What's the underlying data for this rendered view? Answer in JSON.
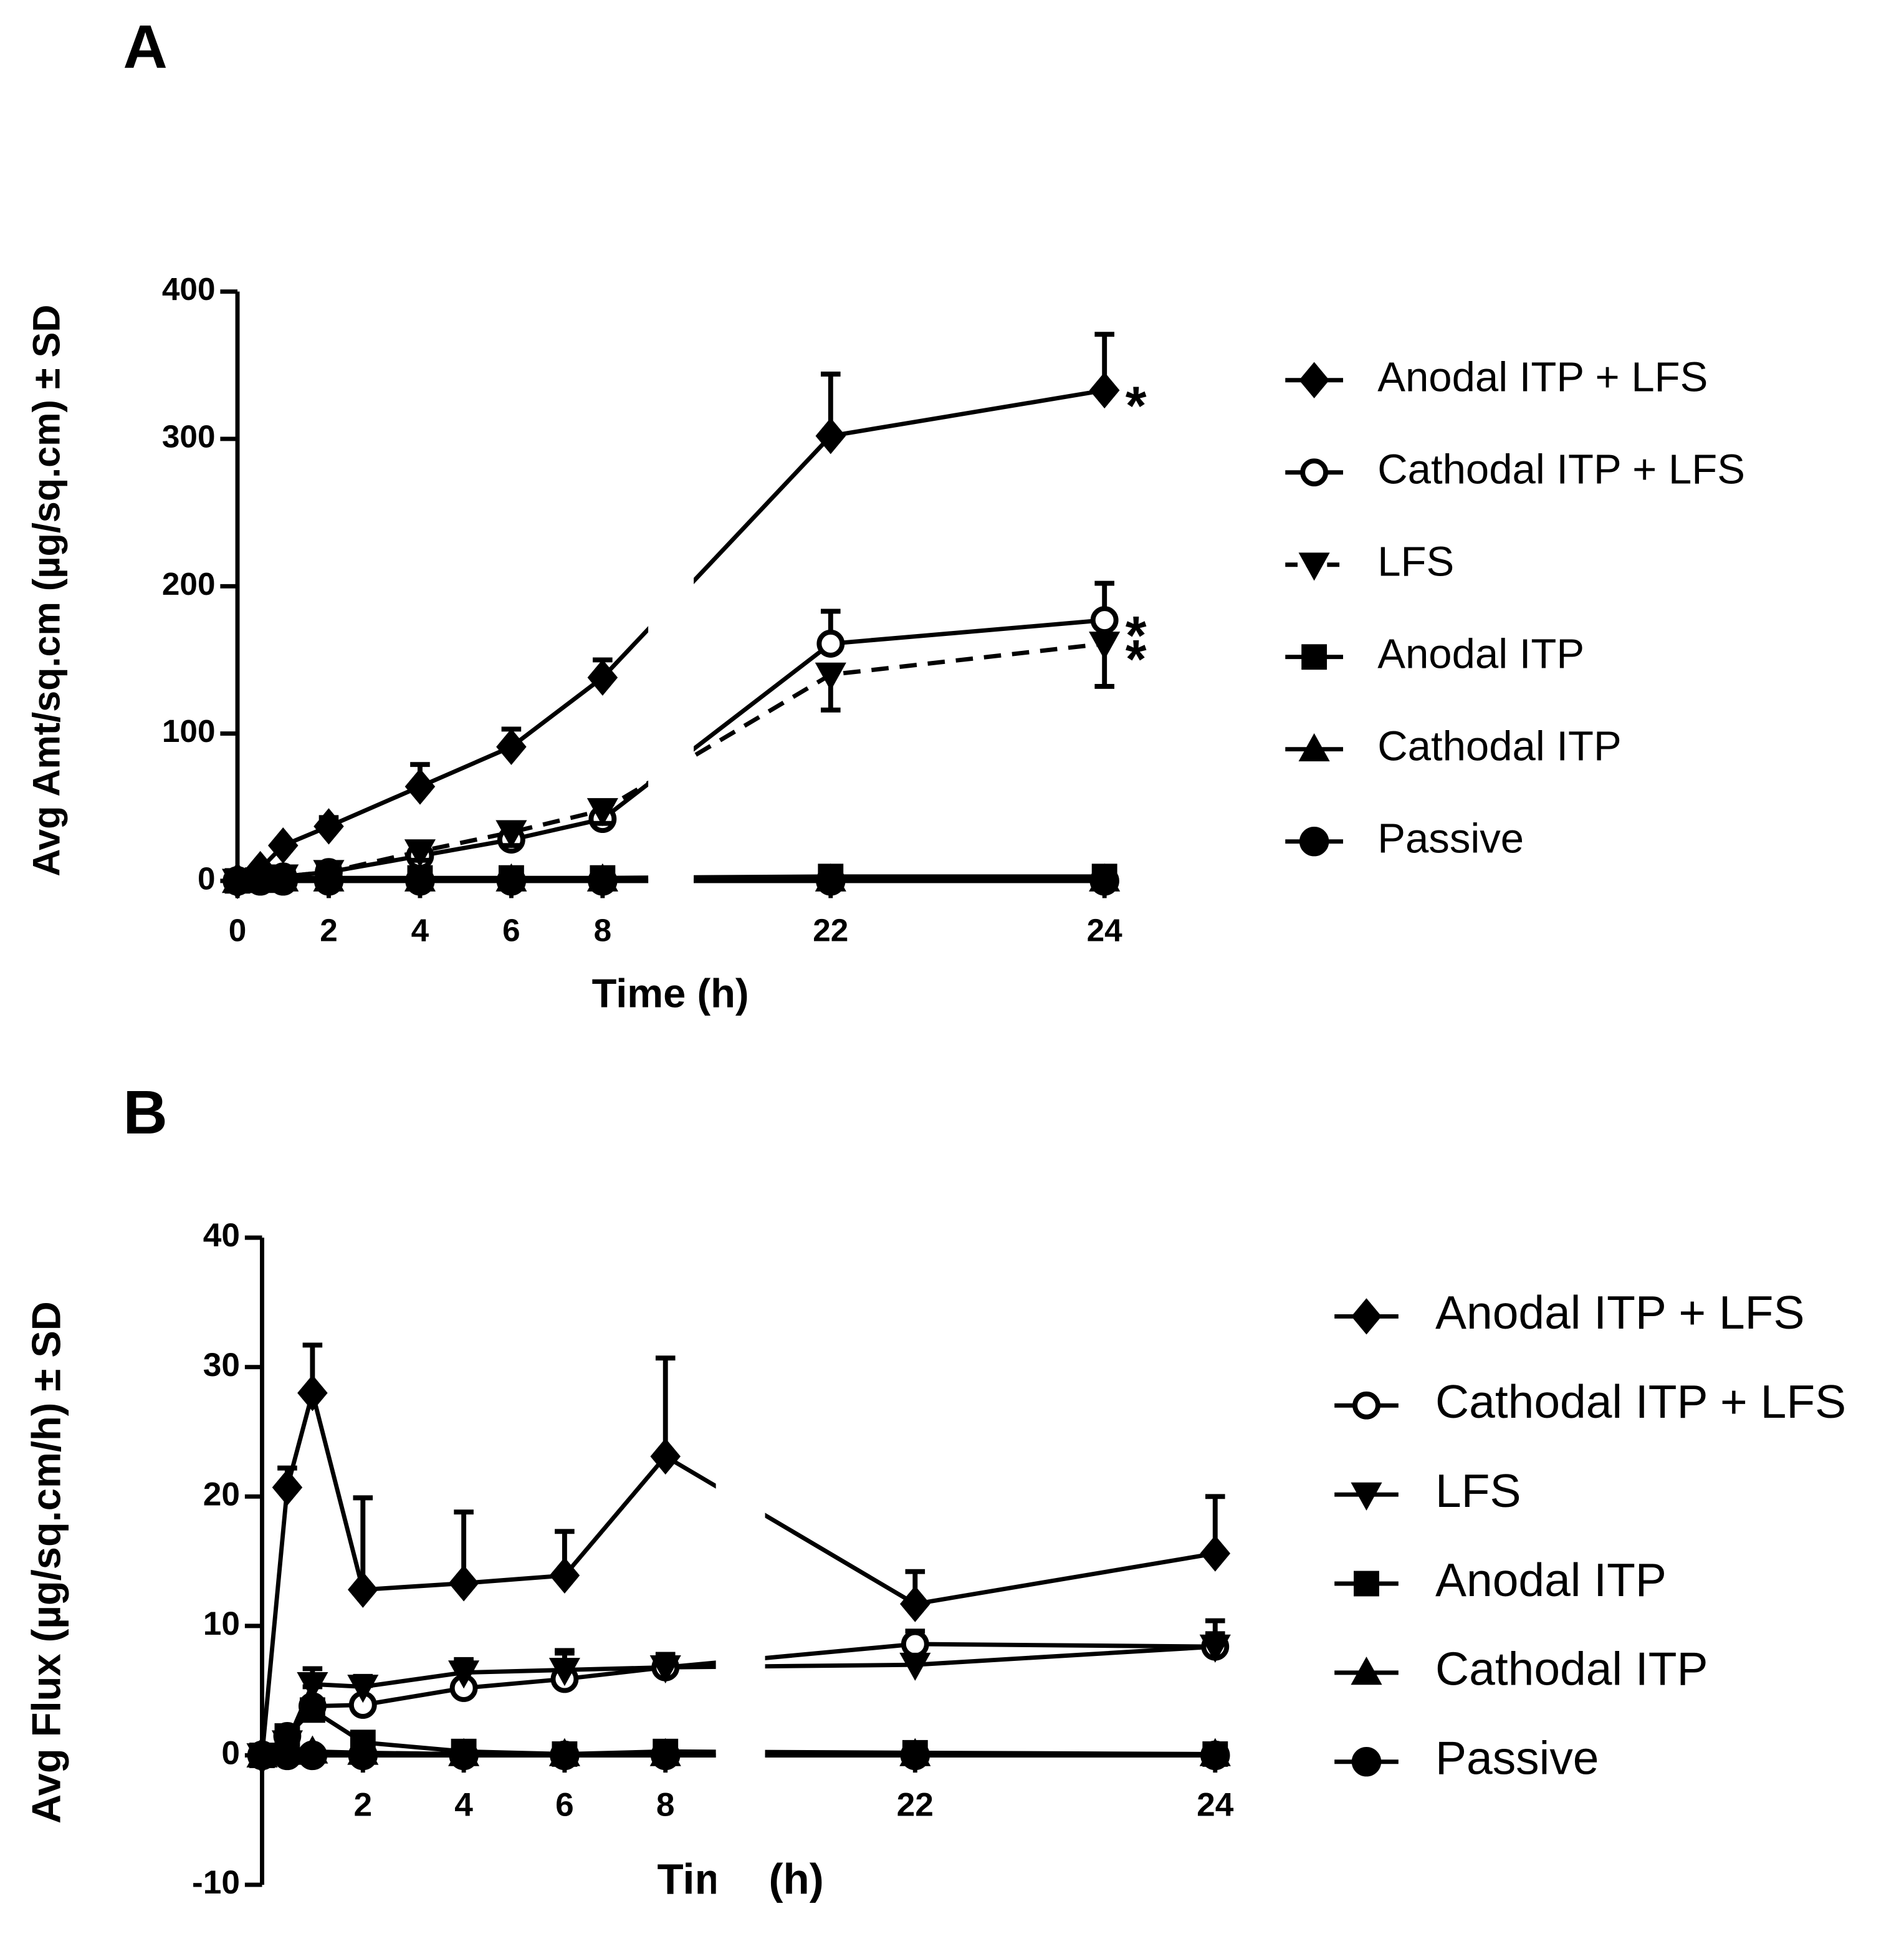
{
  "chart_data": [
    {
      "type": "line",
      "panel_label": "A",
      "ylabel": "Avg Amt/sq.cm (µg/sq.cm) ± SD",
      "xlabel": "Time (h)",
      "x": [
        0,
        0.5,
        1,
        2,
        4,
        6,
        8,
        22,
        24
      ],
      "xlim": [
        [
          0,
          9
        ],
        [
          21,
          24
        ]
      ],
      "xticks": [
        0,
        2,
        4,
        6,
        8,
        22,
        24
      ],
      "ylim": [
        0,
        400
      ],
      "yticks": [
        0,
        100,
        200,
        300,
        400
      ],
      "series": [
        {
          "name": "Anodal ITP + LFS",
          "color": "#000000",
          "marker": "diamond",
          "dashed": false,
          "error_direction": "up",
          "values": [
            0,
            8,
            24,
            37,
            64,
            91,
            138,
            302,
            333
          ],
          "errors": [
            null,
            null,
            null,
            6,
            15,
            12,
            12,
            42,
            38
          ]
        },
        {
          "name": "Cathodal ITP + LFS",
          "color": "#000000",
          "marker": "open-circle",
          "dashed": false,
          "error_direction": "up",
          "values": [
            0,
            1,
            3,
            6,
            17,
            28,
            42,
            161,
            177
          ],
          "errors": [
            null,
            null,
            null,
            3,
            6,
            9,
            9,
            22,
            25
          ]
        },
        {
          "name": "LFS",
          "color": "#000000",
          "marker": "triangle-down",
          "dashed": true,
          "error_direction": "down",
          "values": [
            0,
            1,
            3,
            6,
            20,
            33,
            48,
            140,
            161
          ],
          "errors": [
            null,
            null,
            null,
            3,
            6,
            9,
            9,
            24,
            29
          ]
        },
        {
          "name": "Anodal ITP",
          "color": "#000000",
          "marker": "square",
          "dashed": false,
          "error_direction": "up",
          "values": [
            0,
            1,
            2,
            2,
            2,
            2,
            2,
            3,
            3
          ],
          "errors": [
            null,
            null,
            null,
            null,
            null,
            null,
            null,
            null,
            null
          ]
        },
        {
          "name": "Cathodal ITP",
          "color": "#000000",
          "marker": "triangle-up",
          "dashed": false,
          "error_direction": "up",
          "values": [
            0,
            0,
            1,
            1,
            1,
            1,
            1,
            1,
            1
          ],
          "errors": [
            null,
            null,
            null,
            null,
            null,
            null,
            null,
            null,
            null
          ]
        },
        {
          "name": "Passive",
          "color": "#000000",
          "marker": "circle",
          "dashed": false,
          "error_direction": "up",
          "values": [
            0,
            0,
            0,
            0,
            0,
            0,
            0,
            0,
            0
          ],
          "errors": [
            null,
            null,
            null,
            null,
            null,
            null,
            null,
            null,
            null
          ]
        }
      ],
      "annotations": [
        {
          "text": "*",
          "series": 0,
          "index": 8
        },
        {
          "text": "*",
          "series": 1,
          "index": 8
        },
        {
          "text": "*",
          "series": 2,
          "index": 8
        }
      ]
    },
    {
      "type": "line",
      "panel_label": "B",
      "ylabel": "Avg Flux (µg/sq.cm/h) ± SD",
      "xlabel": "Time (h)",
      "x": [
        0,
        0.5,
        1,
        2,
        4,
        6,
        8,
        22,
        24
      ],
      "xlim": [
        [
          0,
          9
        ],
        [
          21,
          24
        ]
      ],
      "xticks": [
        2,
        4,
        6,
        8,
        22,
        24
      ],
      "ylim": [
        -10,
        40
      ],
      "yticks": [
        -10,
        0,
        10,
        20,
        30,
        40
      ],
      "series": [
        {
          "name": "Anodal ITP + LFS",
          "color": "#000000",
          "marker": "diamond",
          "dashed": false,
          "error_direction": "up",
          "values": [
            0,
            20.7,
            28,
            12.8,
            13.3,
            13.9,
            23.1,
            11.7,
            15.6
          ],
          "errors": [
            null,
            1.5,
            3.7,
            7.1,
            5.5,
            3.4,
            7.6,
            2.5,
            4.4
          ]
        },
        {
          "name": "Cathodal ITP + LFS",
          "color": "#000000",
          "marker": "open-circle",
          "dashed": false,
          "error_direction": "up",
          "values": [
            0,
            1.5,
            3.8,
            3.9,
            5.2,
            5.9,
            6.8,
            8.6,
            8.4
          ],
          "errors": [
            null,
            0.5,
            1.5,
            1.5,
            2,
            2,
            1,
            1,
            2
          ]
        },
        {
          "name": "LFS",
          "color": "#000000",
          "marker": "triangle-down",
          "dashed": false,
          "error_direction": "up",
          "values": [
            0,
            1,
            5.5,
            5.3,
            6.4,
            6.6,
            6.8,
            7,
            8.4
          ],
          "errors": [
            null,
            0.5,
            1.2,
            0.8,
            1,
            1.5,
            1,
            0.5,
            1
          ]
        },
        {
          "name": "Anodal ITP",
          "color": "#000000",
          "marker": "square",
          "dashed": false,
          "error_direction": "up",
          "values": [
            0,
            1.5,
            3.5,
            1,
            0.3,
            0.1,
            0.3,
            0.2,
            0.1
          ],
          "errors": [
            null,
            0.5,
            0.8,
            0.5,
            null,
            null,
            null,
            null,
            null
          ]
        },
        {
          "name": "Cathodal ITP",
          "color": "#000000",
          "marker": "triangle-up",
          "dashed": false,
          "error_direction": "up",
          "values": [
            0,
            0.2,
            0.3,
            0.2,
            0.1,
            0.1,
            0.1,
            0.1,
            0.1
          ],
          "errors": [
            null,
            null,
            null,
            null,
            null,
            null,
            null,
            null,
            null
          ]
        },
        {
          "name": "Passive",
          "color": "#000000",
          "marker": "circle",
          "dashed": false,
          "error_direction": "up",
          "values": [
            0,
            0,
            0,
            0,
            0,
            0,
            0,
            0,
            0
          ],
          "errors": [
            null,
            null,
            null,
            null,
            null,
            null,
            null,
            null,
            null
          ]
        }
      ]
    }
  ]
}
